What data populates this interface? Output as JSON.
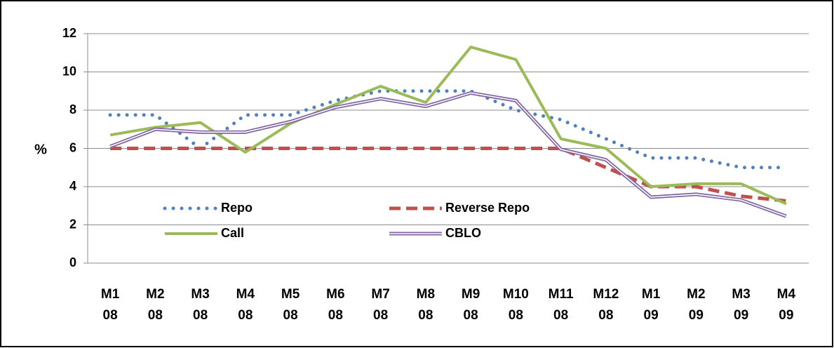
{
  "chart_data": {
    "type": "line",
    "y_label": "%",
    "categories": [
      "M1 08",
      "M2 08",
      "M3 08",
      "M4 08",
      "M5 08",
      "M6 08",
      "M7 08",
      "M8 08",
      "M9 08",
      "M10 08",
      "M11 08",
      "M12 08",
      "M1 09",
      "M2 09",
      "M3 09",
      "M4 09"
    ],
    "ylim": [
      0,
      12
    ],
    "yticks": [
      0,
      2,
      4,
      6,
      8,
      10,
      12
    ],
    "grid": true,
    "legend": "lower-left",
    "series": [
      {
        "name": "Repo",
        "color": "#4f81bd",
        "style": "dotted",
        "values": [
          7.75,
          7.75,
          6,
          7.75,
          7.75,
          8.5,
          9,
          9,
          9,
          8,
          7.5,
          6.5,
          5.5,
          5.5,
          5,
          5
        ]
      },
      {
        "name": "Reverse Repo",
        "color": "#c0504d",
        "style": "dashed",
        "values": [
          6,
          6,
          6,
          6,
          6,
          6,
          6,
          6,
          6,
          6,
          6,
          5,
          4,
          4,
          3.5,
          3.25
        ]
      },
      {
        "name": "Call",
        "color": "#9bbb59",
        "style": "solid",
        "values": [
          6.7,
          7.1,
          7.35,
          5.8,
          7.3,
          8.3,
          9.25,
          8.4,
          11.3,
          10.65,
          6.5,
          6.0,
          4.0,
          4.15,
          4.15,
          3.1
        ]
      },
      {
        "name": "CBLO",
        "color": "#8064a2",
        "style": "double",
        "values": [
          6.1,
          7.0,
          6.85,
          6.85,
          7.4,
          8.15,
          8.6,
          8.2,
          8.9,
          8.5,
          5.95,
          5.4,
          3.45,
          3.6,
          3.3,
          2.45
        ]
      }
    ]
  }
}
